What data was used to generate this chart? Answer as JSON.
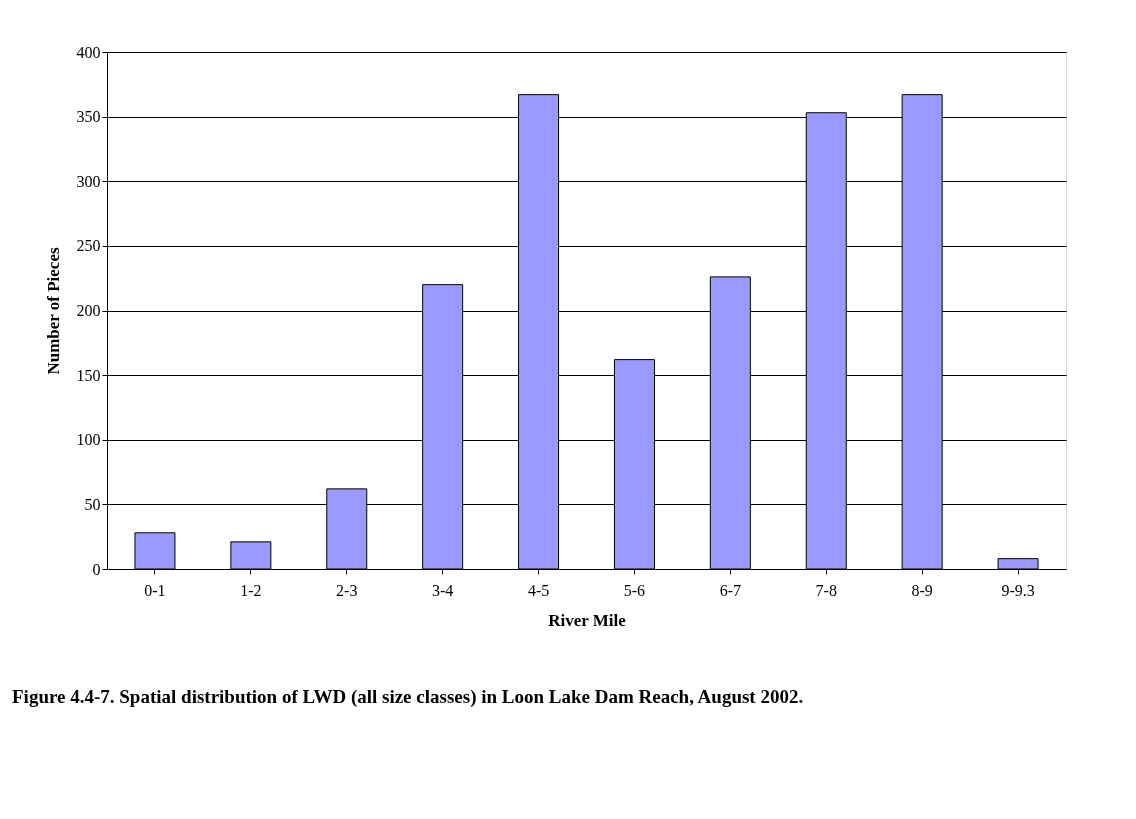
{
  "chart_data": {
    "type": "bar",
    "xlabel": "River Mile",
    "ylabel": "Number of Pieces",
    "categories": [
      "0-1",
      "1-2",
      "2-3",
      "3-4",
      "4-5",
      "5-6",
      "6-7",
      "7-8",
      "8-9",
      "9-9.3"
    ],
    "values": [
      28,
      21,
      62,
      220,
      367,
      162,
      226,
      353,
      367,
      8
    ],
    "color": "#9999ff",
    "ylim": [
      0,
      400
    ],
    "yticks": [
      0,
      50,
      100,
      150,
      200,
      250,
      300,
      350,
      400
    ],
    "grid": "y",
    "annotations": [
      "Figure 4.4-7. Spatial distribution of LWD (all size classes) in Loon Lake Dam Reach, August 2002."
    ]
  }
}
